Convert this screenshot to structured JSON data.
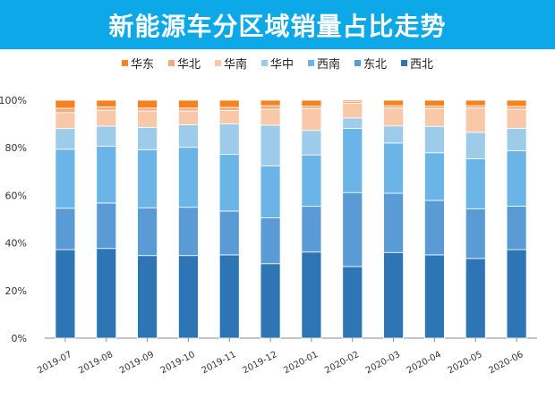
{
  "chart_data": {
    "type": "bar",
    "stacked": true,
    "title": "新能源车分区域销量占比走势",
    "xlabel": "",
    "ylabel": "",
    "ylim": [
      0,
      100
    ],
    "yticks": [
      "0%",
      "20%",
      "40%",
      "60%",
      "80%",
      "100%"
    ],
    "grid": false,
    "legend_position": "top",
    "categories": [
      "2019-07",
      "2019-08",
      "2019-09",
      "2019-10",
      "2019-11",
      "2019-12",
      "2020-01",
      "2020-02",
      "2020-03",
      "2020-04",
      "2020-05",
      "2020-06"
    ],
    "series": [
      {
        "name": "西北",
        "color": "#2e75b6",
        "values": [
          37.2,
          37.7,
          34.7,
          34.7,
          35.0,
          31.3,
          36.2,
          30.1,
          36.0,
          35.0,
          33.5,
          37.2
        ]
      },
      {
        "name": "东北",
        "color": "#5b9bd5",
        "values": [
          17.4,
          19.1,
          20.1,
          20.3,
          18.4,
          19.3,
          19.2,
          31.1,
          24.9,
          22.9,
          20.9,
          18.3
        ]
      },
      {
        "name": "西南",
        "color": "#6ab4e8",
        "values": [
          24.8,
          23.9,
          24.4,
          25.2,
          23.8,
          21.8,
          21.6,
          27.0,
          21.1,
          20.0,
          21.0,
          23.3
        ]
      },
      {
        "name": "华中",
        "color": "#9dcbea",
        "values": [
          8.7,
          8.4,
          9.4,
          9.5,
          12.8,
          17.1,
          10.3,
          4.3,
          7.2,
          11.1,
          11.1,
          9.4
        ]
      },
      {
        "name": "华南",
        "color": "#f8c8a8",
        "values": [
          6.7,
          6.7,
          6.9,
          5.8,
          5.7,
          6.7,
          9.2,
          6.2,
          7.5,
          7.5,
          10.2,
          8.0
        ]
      },
      {
        "name": "华北",
        "color": "#f2ad7e",
        "values": [
          1.8,
          1.4,
          1.2,
          1.2,
          1.3,
          1.5,
          1.0,
          0.7,
          1.0,
          1.0,
          1.0,
          1.2
        ]
      },
      {
        "name": "华东",
        "color": "#f58220",
        "values": [
          3.4,
          2.8,
          3.3,
          3.3,
          3.0,
          2.3,
          2.5,
          0.6,
          2.3,
          2.5,
          2.3,
          2.6
        ]
      }
    ],
    "legend_order": [
      "华东",
      "华北",
      "华南",
      "华中",
      "西南",
      "东北",
      "西北"
    ]
  }
}
